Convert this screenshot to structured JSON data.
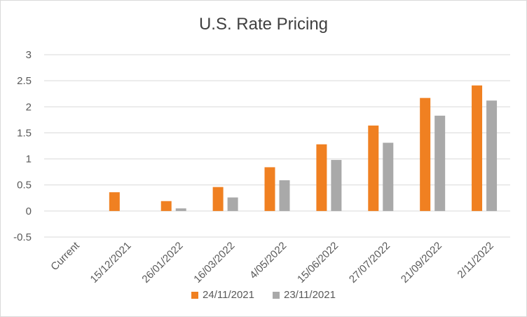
{
  "chart_data": {
    "type": "bar",
    "title": "U.S. Rate Pricing",
    "categories": [
      "Current",
      "15/12/2021",
      "26/01/2022",
      "16/03/2022",
      "4/05/2022",
      "15/06/2022",
      "27/07/2022",
      "21/09/2022",
      "2/11/2022"
    ],
    "series": [
      {
        "name": "24/11/2021",
        "color": "#f08021",
        "values": [
          0,
          0.36,
          0.19,
          0.46,
          0.84,
          1.28,
          1.64,
          2.17,
          2.41
        ]
      },
      {
        "name": "23/11/2021",
        "color": "#a9a9a9",
        "values": [
          0,
          0,
          0.05,
          0.26,
          0.59,
          0.98,
          1.31,
          1.83,
          2.12
        ]
      }
    ],
    "ylim": [
      -0.5,
      3
    ],
    "yticks": [
      "-0.5",
      "0",
      "0.5",
      "1",
      "1.5",
      "2",
      "2.5",
      "3"
    ],
    "grid": true,
    "legend_position": "bottom"
  }
}
